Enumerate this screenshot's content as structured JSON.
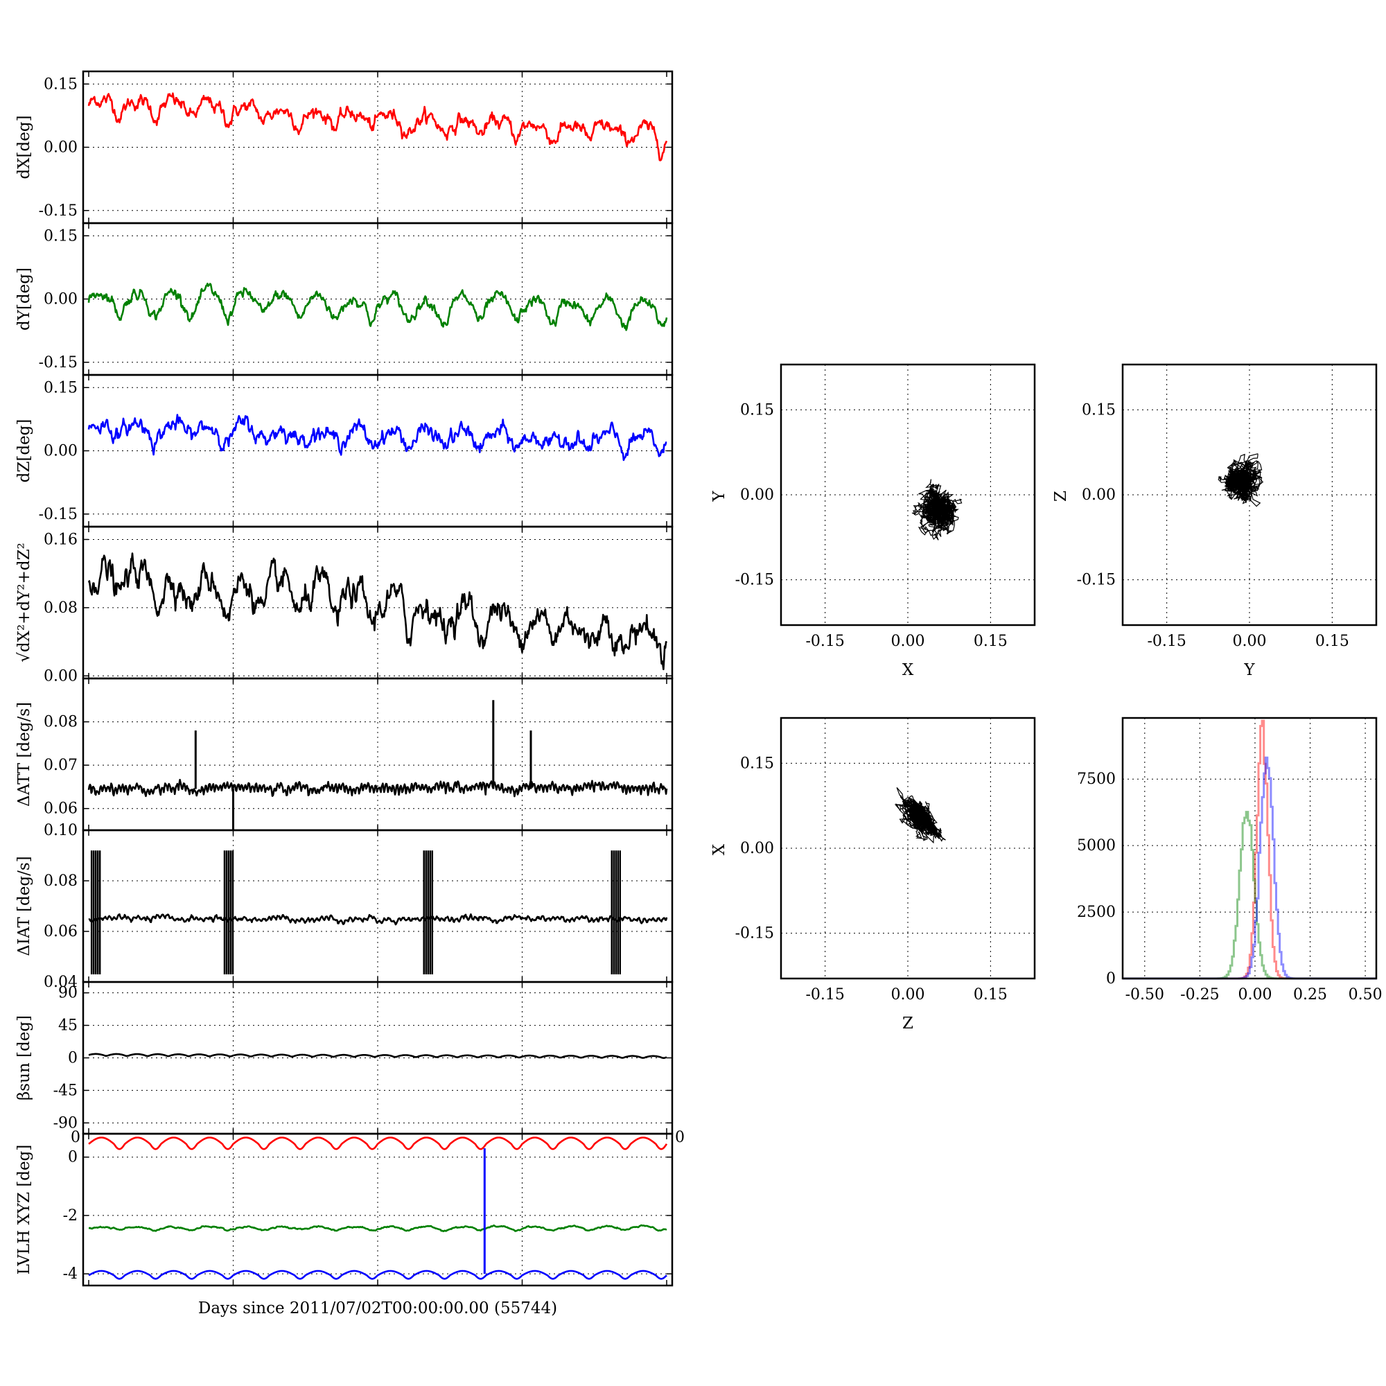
{
  "figure": {
    "xlabel": "Days since 2011/07/02T00:00:00.00 (55744)"
  },
  "chart_data": [
    {
      "id": "dX",
      "type": "line",
      "ylabel": "dX[deg]",
      "ylim": [
        -0.18,
        0.18
      ],
      "yticks": [
        "-0.15",
        "0.00",
        "0.15"
      ],
      "ytick_values": [
        -0.15,
        0,
        0.15
      ],
      "x_gridlines": 4,
      "grid": true,
      "series": [
        {
          "color": "#ff0000",
          "start": 0.1,
          "end": 0.02,
          "mean": 0.058,
          "amplitude": 0.018,
          "cycles": 16,
          "noise": 0.012
        }
      ]
    },
    {
      "id": "dY",
      "type": "line",
      "ylabel": "dY[deg]",
      "ylim": [
        -0.18,
        0.18
      ],
      "yticks": [
        "-0.15",
        "0.00",
        "0.15"
      ],
      "ytick_values": [
        -0.15,
        0,
        0.15
      ],
      "x_gridlines": 4,
      "grid": true,
      "series": [
        {
          "color": "#008000",
          "start": -0.01,
          "end": -0.04,
          "mean": -0.03,
          "amplitude": 0.03,
          "cycles": 16,
          "noise": 0.01
        }
      ]
    },
    {
      "id": "dZ",
      "type": "line",
      "ylabel": "dZ[deg]",
      "ylim": [
        -0.18,
        0.18
      ],
      "yticks": [
        "-0.15",
        "0.00",
        "0.15"
      ],
      "ytick_values": [
        -0.15,
        0,
        0.15
      ],
      "x_gridlines": 4,
      "grid": true,
      "series": [
        {
          "color": "#0000ff",
          "start": 0.05,
          "end": 0.01,
          "mean": 0.02,
          "amplitude": 0.018,
          "cycles": 16,
          "noise": 0.014
        }
      ]
    },
    {
      "id": "dTotal",
      "type": "line",
      "ylabel": "√dX²+dY²+dZ²",
      "ylim": [
        -0.003,
        0.175
      ],
      "yticks": [
        "0.00",
        "0.08",
        "0.16"
      ],
      "ytick_values": [
        0,
        0.08,
        0.16
      ],
      "x_gridlines": 4,
      "grid": true,
      "series": [
        {
          "color": "#000000",
          "start": 0.11,
          "end": 0.04,
          "mean": 0.07,
          "amplitude": 0.02,
          "cycles": 16,
          "noise": 0.012
        }
      ]
    },
    {
      "id": "dATT",
      "type": "line",
      "ylabel": "ΔATT [deg/s]",
      "ylim": [
        0.055,
        0.09
      ],
      "yticks": [
        "0.06",
        "0.07",
        "0.08"
      ],
      "ytick_values": [
        0.06,
        0.07,
        0.08
      ],
      "x_gridlines": 4,
      "grid": true,
      "series": [
        {
          "color": "#000000",
          "mean": 0.0645,
          "amplitude": 0.0008,
          "cycles": 160,
          "noise": 0.0006,
          "spikes": [
            {
              "x": 0.185,
              "y": 0.078
            },
            {
              "x": 0.25,
              "y": 0.055
            },
            {
              "x": 0.7,
              "y": 0.085
            },
            {
              "x": 0.765,
              "y": 0.078
            }
          ]
        }
      ]
    },
    {
      "id": "dIAT",
      "type": "line",
      "ylabel": "ΔIAT [deg/s]",
      "ylim": [
        0.04,
        0.1
      ],
      "yticks": [
        "0.04",
        "0.06",
        "0.08",
        "0.10"
      ],
      "ytick_values": [
        0.04,
        0.06,
        0.08,
        0.1
      ],
      "x_gridlines": 4,
      "grid": true,
      "series": [
        {
          "color": "#000000",
          "mean": 0.0648,
          "amplitude": 0.0006,
          "cycles": 120,
          "noise": 0.0006,
          "bursts": [
            0.005,
            0.235,
            0.58,
            0.905
          ],
          "burst_low": 0.043,
          "burst_high": 0.092
        }
      ]
    },
    {
      "id": "beta",
      "type": "line",
      "ylabel": "βsun [deg]",
      "ylim": [
        -105,
        105
      ],
      "yticks": [
        "-90",
        "-45",
        "0",
        "45",
        "90"
      ],
      "ytick_values": [
        -90,
        -45,
        0,
        45,
        90
      ],
      "x_gridlines": 4,
      "grid": true,
      "series": [
        {
          "color": "#000000",
          "start": 4,
          "end": 1,
          "mean": 2,
          "amplitude": 1.5,
          "cycles": 28,
          "noise": 0
        }
      ]
    },
    {
      "id": "lvlh",
      "type": "line",
      "ylabel": "LVLH XYZ [deg]",
      "ylim": [
        -4.4,
        0.8
      ],
      "yticks": [
        "-4",
        "-2",
        "0"
      ],
      "ytick_values": [
        -4,
        -2,
        0
      ],
      "corner_ticks": [
        "0",
        "0",
        "0"
      ],
      "x_gridlines": 4,
      "grid": true,
      "series": [
        {
          "color": "#ff0000",
          "mean": 0.45,
          "amplitude": 0.22,
          "cycles": 16,
          "noise": 0
        },
        {
          "color": "#008000",
          "mean": -2.45,
          "amplitude": 0.07,
          "cycles": 16,
          "noise": 0.02
        },
        {
          "color": "#0000ff",
          "mean": -4.05,
          "amplitude": 0.15,
          "cycles": 16,
          "noise": 0,
          "drop": {
            "x": 0.685,
            "from": 0.3,
            "to": -4.0
          }
        }
      ]
    },
    {
      "id": "xy",
      "type": "scatter",
      "xlabel": "X",
      "ylabel": "Y",
      "xlim": [
        -0.23,
        0.23
      ],
      "ylim": [
        -0.23,
        0.23
      ],
      "xticks": [
        "-0.15",
        "0.00",
        "0.15"
      ],
      "yticks": [
        "-0.15",
        "0.00",
        "0.15"
      ],
      "tick_values": [
        -0.15,
        0,
        0.15
      ],
      "cluster": {
        "cx": 0.055,
        "cy": -0.03,
        "sx": 0.022,
        "sy": 0.026
      }
    },
    {
      "id": "yz",
      "type": "scatter",
      "xlabel": "Y",
      "ylabel": "Z",
      "xlim": [
        -0.23,
        0.23
      ],
      "ylim": [
        -0.23,
        0.23
      ],
      "xticks": [
        "-0.15",
        "0.00",
        "0.15"
      ],
      "yticks": [
        "-0.15",
        "0.00",
        "0.15"
      ],
      "tick_values": [
        -0.15,
        0,
        0.15
      ],
      "cluster": {
        "cx": -0.015,
        "cy": 0.025,
        "sx": 0.022,
        "sy": 0.025
      }
    },
    {
      "id": "zx",
      "type": "scatter",
      "xlabel": "Z",
      "ylabel": "X",
      "xlim": [
        -0.23,
        0.23
      ],
      "ylim": [
        -0.23,
        0.23
      ],
      "xticks": [
        "-0.15",
        "0.00",
        "0.15"
      ],
      "yticks": [
        "-0.15",
        "0.00",
        "0.15"
      ],
      "tick_values": [
        -0.15,
        0,
        0.15
      ],
      "cluster": {
        "cx": 0.02,
        "cy": 0.055,
        "sx": 0.022,
        "sy": 0.018,
        "tilt": -0.6
      }
    },
    {
      "id": "hist",
      "type": "histogram",
      "xlim": [
        -0.6,
        0.55
      ],
      "ylim": [
        0,
        9800
      ],
      "xticks": [
        "-0.50",
        "-0.25",
        "0.00",
        "0.25",
        "0.50"
      ],
      "xtick_values": [
        -0.5,
        -0.25,
        0,
        0.25,
        0.5
      ],
      "yticks": [
        "0",
        "2500",
        "5000",
        "7500"
      ],
      "ytick_values": [
        0,
        2500,
        5000,
        7500
      ],
      "series": [
        {
          "color": "#ff0000",
          "opacity": 0.45,
          "center": 0.03,
          "sigma": 0.025,
          "peak": 9300
        },
        {
          "color": "#008000",
          "opacity": 0.45,
          "center": -0.04,
          "sigma": 0.032,
          "peak": 6400
        },
        {
          "color": "#0000ff",
          "opacity": 0.45,
          "center": 0.05,
          "sigma": 0.03,
          "peak": 8500
        }
      ]
    }
  ]
}
